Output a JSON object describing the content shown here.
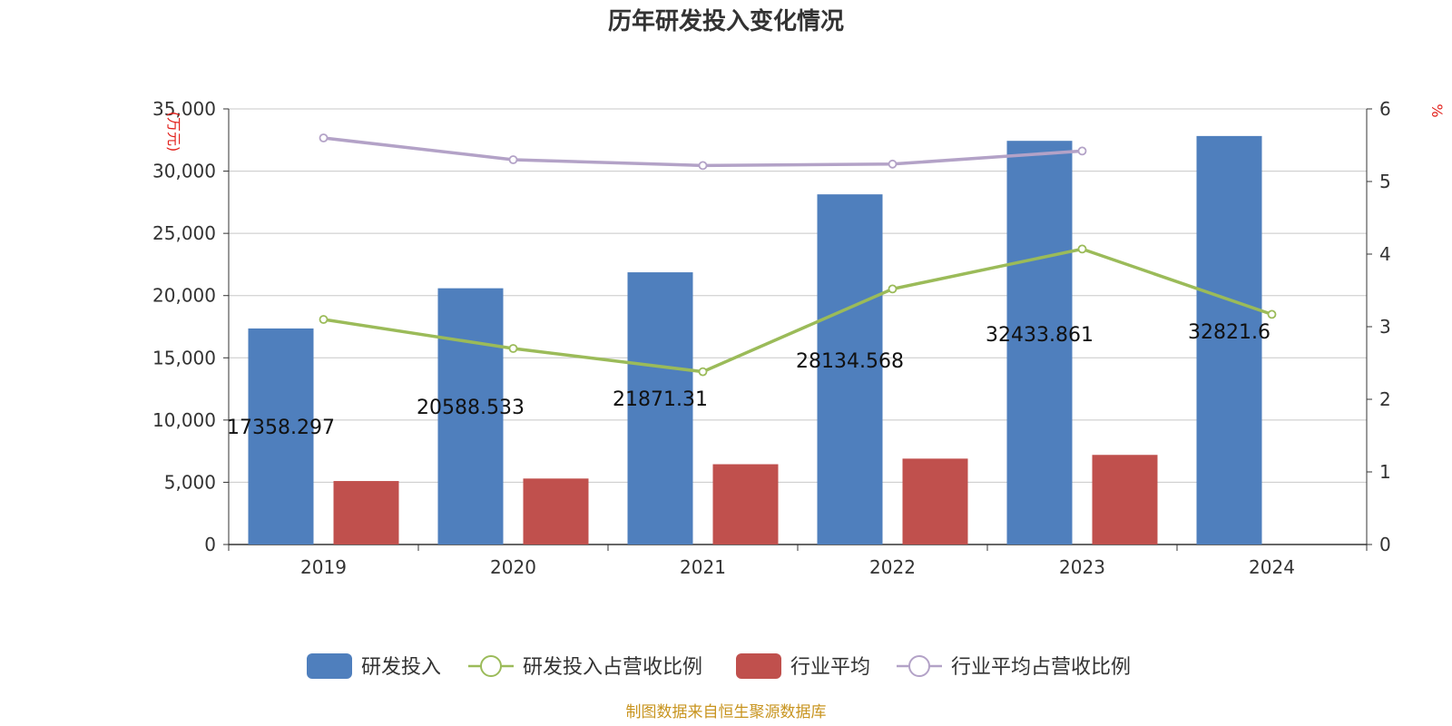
{
  "chart_data": {
    "type": "bar",
    "title": "历年研发投入变化情况",
    "categories": [
      "2019",
      "2020",
      "2021",
      "2022",
      "2023",
      "2024"
    ],
    "left_axis": {
      "unit": "(万元)",
      "min": 0,
      "max": 35000,
      "ticks": [
        "0",
        "5,000",
        "10,000",
        "15,000",
        "20,000",
        "25,000",
        "30,000",
        "35,000"
      ]
    },
    "right_axis": {
      "unit": "%",
      "min": 0,
      "max": 6,
      "ticks": [
        "0",
        "1",
        "2",
        "3",
        "4",
        "5",
        "6"
      ]
    },
    "series": [
      {
        "name": "研发投入",
        "kind": "bar",
        "axis": "left",
        "color": "#4f7fbd",
        "values": [
          17358.297,
          20588.533,
          21871.31,
          28134.568,
          32433.861,
          32821.6
        ],
        "labels": [
          "17358.297",
          "20588.533",
          "21871.31",
          "28134.568",
          "32433.861",
          "32821.6"
        ]
      },
      {
        "name": "研发投入占营收比例",
        "kind": "line",
        "axis": "right",
        "color": "#9bbb59",
        "values": [
          3.1,
          2.7,
          2.38,
          3.52,
          4.07,
          3.17
        ]
      },
      {
        "name": "行业平均",
        "kind": "bar",
        "axis": "left",
        "color": "#c0504d",
        "values": [
          5100,
          5300,
          6450,
          6900,
          7200,
          null
        ]
      },
      {
        "name": "行业平均占营收比例",
        "kind": "line",
        "axis": "right",
        "color": "#b3a2c7",
        "values": [
          5.6,
          5.3,
          5.22,
          5.24,
          5.42,
          null
        ]
      }
    ],
    "grid": true,
    "legend": "bottom-center",
    "source": "制图数据来自恒生聚源数据库"
  }
}
